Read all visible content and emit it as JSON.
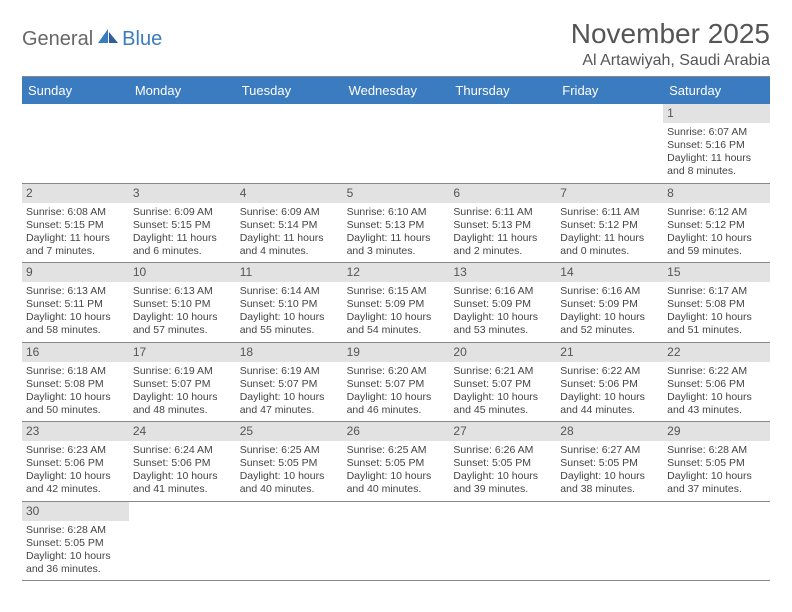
{
  "logo": {
    "word1": "General",
    "word2": "Blue"
  },
  "title": "November 2025",
  "location": "Al Artawiyah, Saudi Arabia",
  "header_bg": "#3b7bbf",
  "header_fg": "#ffffff",
  "daynum_bg": "#e2e2e2",
  "border_color": "#888888",
  "text_color": "#444444",
  "day_names": [
    "Sunday",
    "Monday",
    "Tuesday",
    "Wednesday",
    "Thursday",
    "Friday",
    "Saturday"
  ],
  "weeks": [
    [
      null,
      null,
      null,
      null,
      null,
      null,
      {
        "n": "1",
        "sr": "Sunrise: 6:07 AM",
        "ss": "Sunset: 5:16 PM",
        "dl": "Daylight: 11 hours and 8 minutes."
      }
    ],
    [
      {
        "n": "2",
        "sr": "Sunrise: 6:08 AM",
        "ss": "Sunset: 5:15 PM",
        "dl": "Daylight: 11 hours and 7 minutes."
      },
      {
        "n": "3",
        "sr": "Sunrise: 6:09 AM",
        "ss": "Sunset: 5:15 PM",
        "dl": "Daylight: 11 hours and 6 minutes."
      },
      {
        "n": "4",
        "sr": "Sunrise: 6:09 AM",
        "ss": "Sunset: 5:14 PM",
        "dl": "Daylight: 11 hours and 4 minutes."
      },
      {
        "n": "5",
        "sr": "Sunrise: 6:10 AM",
        "ss": "Sunset: 5:13 PM",
        "dl": "Daylight: 11 hours and 3 minutes."
      },
      {
        "n": "6",
        "sr": "Sunrise: 6:11 AM",
        "ss": "Sunset: 5:13 PM",
        "dl": "Daylight: 11 hours and 2 minutes."
      },
      {
        "n": "7",
        "sr": "Sunrise: 6:11 AM",
        "ss": "Sunset: 5:12 PM",
        "dl": "Daylight: 11 hours and 0 minutes."
      },
      {
        "n": "8",
        "sr": "Sunrise: 6:12 AM",
        "ss": "Sunset: 5:12 PM",
        "dl": "Daylight: 10 hours and 59 minutes."
      }
    ],
    [
      {
        "n": "9",
        "sr": "Sunrise: 6:13 AM",
        "ss": "Sunset: 5:11 PM",
        "dl": "Daylight: 10 hours and 58 minutes."
      },
      {
        "n": "10",
        "sr": "Sunrise: 6:13 AM",
        "ss": "Sunset: 5:10 PM",
        "dl": "Daylight: 10 hours and 57 minutes."
      },
      {
        "n": "11",
        "sr": "Sunrise: 6:14 AM",
        "ss": "Sunset: 5:10 PM",
        "dl": "Daylight: 10 hours and 55 minutes."
      },
      {
        "n": "12",
        "sr": "Sunrise: 6:15 AM",
        "ss": "Sunset: 5:09 PM",
        "dl": "Daylight: 10 hours and 54 minutes."
      },
      {
        "n": "13",
        "sr": "Sunrise: 6:16 AM",
        "ss": "Sunset: 5:09 PM",
        "dl": "Daylight: 10 hours and 53 minutes."
      },
      {
        "n": "14",
        "sr": "Sunrise: 6:16 AM",
        "ss": "Sunset: 5:09 PM",
        "dl": "Daylight: 10 hours and 52 minutes."
      },
      {
        "n": "15",
        "sr": "Sunrise: 6:17 AM",
        "ss": "Sunset: 5:08 PM",
        "dl": "Daylight: 10 hours and 51 minutes."
      }
    ],
    [
      {
        "n": "16",
        "sr": "Sunrise: 6:18 AM",
        "ss": "Sunset: 5:08 PM",
        "dl": "Daylight: 10 hours and 50 minutes."
      },
      {
        "n": "17",
        "sr": "Sunrise: 6:19 AM",
        "ss": "Sunset: 5:07 PM",
        "dl": "Daylight: 10 hours and 48 minutes."
      },
      {
        "n": "18",
        "sr": "Sunrise: 6:19 AM",
        "ss": "Sunset: 5:07 PM",
        "dl": "Daylight: 10 hours and 47 minutes."
      },
      {
        "n": "19",
        "sr": "Sunrise: 6:20 AM",
        "ss": "Sunset: 5:07 PM",
        "dl": "Daylight: 10 hours and 46 minutes."
      },
      {
        "n": "20",
        "sr": "Sunrise: 6:21 AM",
        "ss": "Sunset: 5:07 PM",
        "dl": "Daylight: 10 hours and 45 minutes."
      },
      {
        "n": "21",
        "sr": "Sunrise: 6:22 AM",
        "ss": "Sunset: 5:06 PM",
        "dl": "Daylight: 10 hours and 44 minutes."
      },
      {
        "n": "22",
        "sr": "Sunrise: 6:22 AM",
        "ss": "Sunset: 5:06 PM",
        "dl": "Daylight: 10 hours and 43 minutes."
      }
    ],
    [
      {
        "n": "23",
        "sr": "Sunrise: 6:23 AM",
        "ss": "Sunset: 5:06 PM",
        "dl": "Daylight: 10 hours and 42 minutes."
      },
      {
        "n": "24",
        "sr": "Sunrise: 6:24 AM",
        "ss": "Sunset: 5:06 PM",
        "dl": "Daylight: 10 hours and 41 minutes."
      },
      {
        "n": "25",
        "sr": "Sunrise: 6:25 AM",
        "ss": "Sunset: 5:05 PM",
        "dl": "Daylight: 10 hours and 40 minutes."
      },
      {
        "n": "26",
        "sr": "Sunrise: 6:25 AM",
        "ss": "Sunset: 5:05 PM",
        "dl": "Daylight: 10 hours and 40 minutes."
      },
      {
        "n": "27",
        "sr": "Sunrise: 6:26 AM",
        "ss": "Sunset: 5:05 PM",
        "dl": "Daylight: 10 hours and 39 minutes."
      },
      {
        "n": "28",
        "sr": "Sunrise: 6:27 AM",
        "ss": "Sunset: 5:05 PM",
        "dl": "Daylight: 10 hours and 38 minutes."
      },
      {
        "n": "29",
        "sr": "Sunrise: 6:28 AM",
        "ss": "Sunset: 5:05 PM",
        "dl": "Daylight: 10 hours and 37 minutes."
      }
    ],
    [
      {
        "n": "30",
        "sr": "Sunrise: 6:28 AM",
        "ss": "Sunset: 5:05 PM",
        "dl": "Daylight: 10 hours and 36 minutes."
      },
      null,
      null,
      null,
      null,
      null,
      null
    ]
  ]
}
